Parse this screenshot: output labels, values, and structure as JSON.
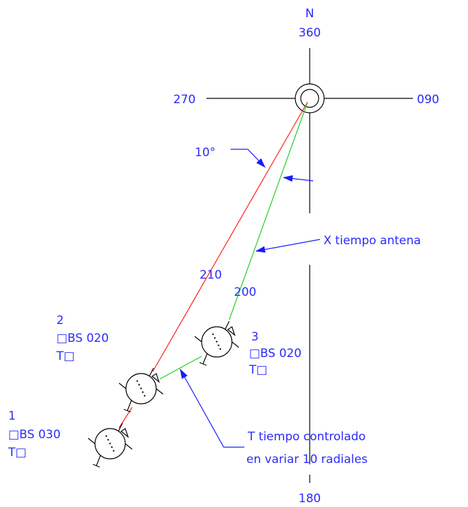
{
  "labels": {
    "north": "N",
    "deg360": "360",
    "deg270": "270",
    "deg090": "090",
    "deg180": "180",
    "angle": "10°",
    "antenna": "X tiempo antena",
    "dist210": "210",
    "dist200": "200",
    "controlled_line1": "T  tiempo controlado",
    "controlled_line2": "en variar 10 radiales"
  },
  "stations": [
    {
      "number": "1",
      "obs": "□BS 030",
      "time": "T□"
    },
    {
      "number": "2",
      "obs": "□BS 020",
      "time": "T□"
    },
    {
      "number": "3",
      "obs": "□BS 020",
      "time": "T□"
    }
  ]
}
